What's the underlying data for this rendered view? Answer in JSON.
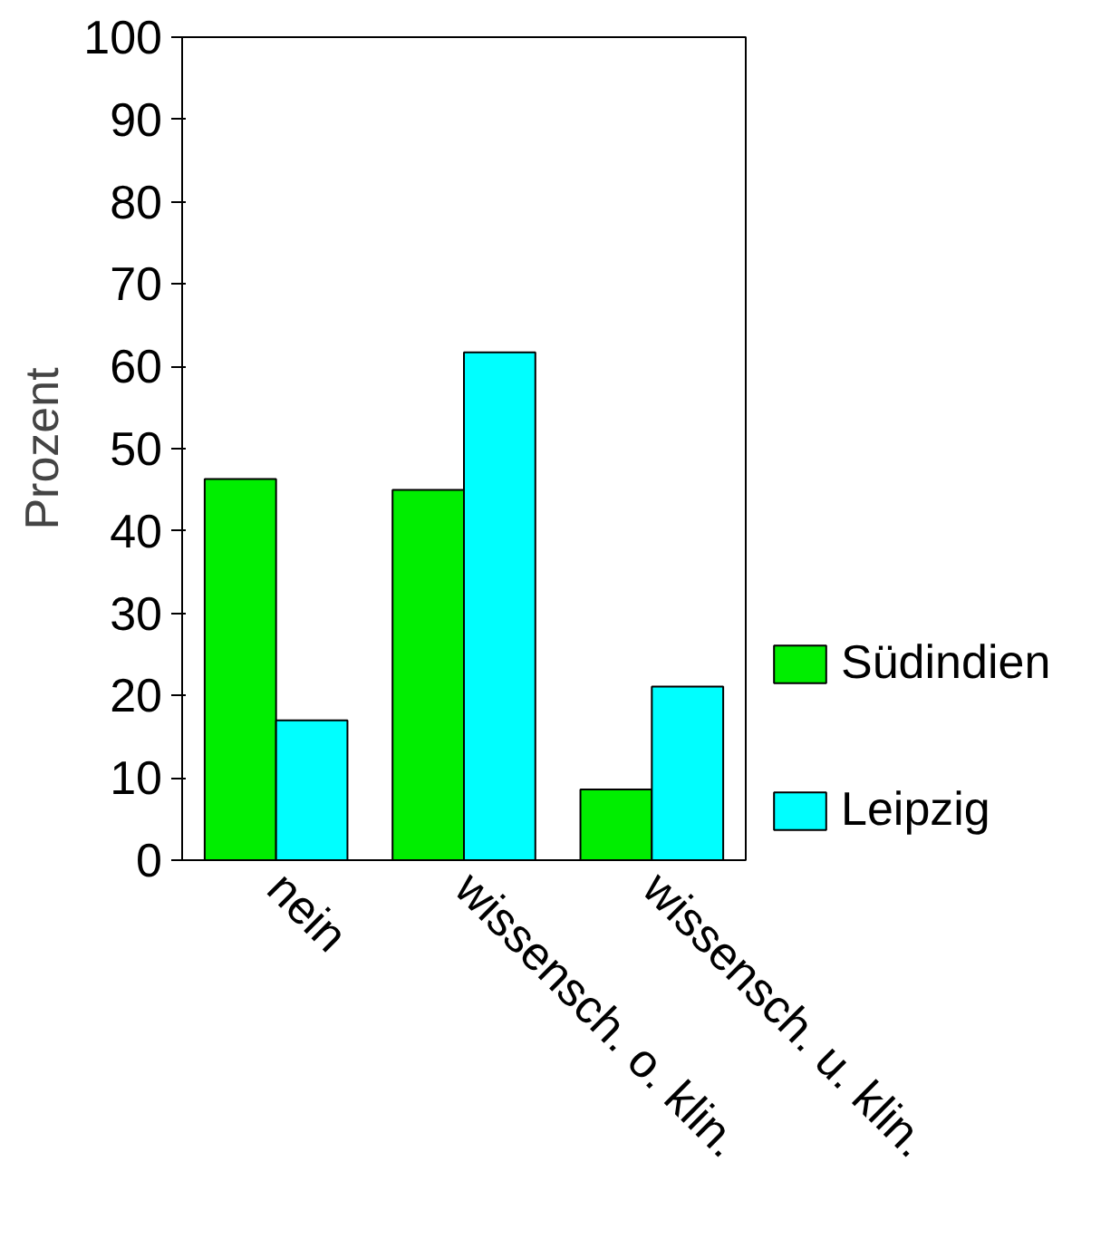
{
  "chart_data": {
    "type": "bar",
    "ylabel": "Prozent",
    "categories": [
      "nein",
      "wissensch. o. klin.",
      "wissensch. u. klin."
    ],
    "series": [
      {
        "name": "Südindien",
        "color": "#00ee00",
        "values": [
          46.3,
          45,
          8.6
        ]
      },
      {
        "name": "Leipzig",
        "color": "#00ffff",
        "values": [
          17,
          61.7,
          21.1
        ]
      }
    ],
    "ylim": [
      0,
      100
    ],
    "yticks": [
      0,
      10,
      20,
      30,
      40,
      50,
      60,
      70,
      80,
      90,
      100
    ],
    "grid": false,
    "legend": "right"
  }
}
